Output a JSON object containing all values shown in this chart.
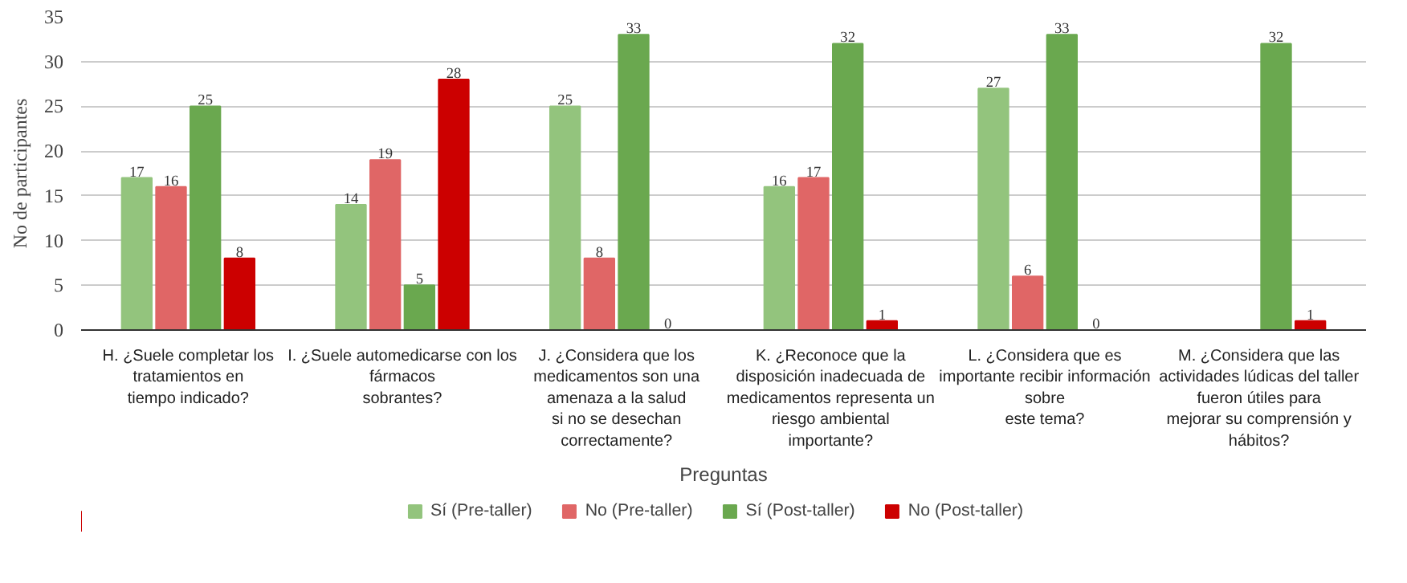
{
  "chart_data": {
    "type": "bar",
    "xlabel": "Preguntas",
    "ylabel": "No de participantes",
    "categories": [
      "H. ¿Suele completar los\ntratamientos en\ntiempo indicado?",
      "I. ¿Suele automedicarse con los\nfármacos\nsobrantes?",
      "J. ¿Considera que los\nmedicamentos son una\namenaza a la salud\nsi no se desechan\ncorrectamente?",
      "K. ¿Reconoce que la\ndisposición inadecuada de\nmedicamentos representa un\nriesgo ambiental\nimportante?",
      "L. ¿Considera que es\nimportante recibir información\nsobre\neste tema?",
      "M. ¿Considera que las\nactividades lúdicas del taller\nfueron útiles para\nmejorar su comprensión y\nhábitos?"
    ],
    "series": [
      {
        "name": "Sí (Pre-taller)",
        "color": "#93c47d",
        "values": [
          17,
          14,
          25,
          16,
          27,
          null
        ]
      },
      {
        "name": "No (Pre-taller)",
        "color": "#e06666",
        "values": [
          16,
          19,
          8,
          17,
          6,
          null
        ]
      },
      {
        "name": "Sí (Post-taller)",
        "color": "#6aa84f",
        "values": [
          25,
          5,
          33,
          32,
          33,
          32
        ]
      },
      {
        "name": "No (Post-taller)",
        "color": "#cc0000",
        "values": [
          8,
          28,
          0,
          1,
          0,
          1
        ]
      }
    ],
    "ylim": [
      0,
      35
    ],
    "yticks": [
      0,
      5,
      10,
      15,
      20,
      25,
      30,
      35
    ],
    "grid": "y",
    "legend": "bottom",
    "data_labels": true
  }
}
